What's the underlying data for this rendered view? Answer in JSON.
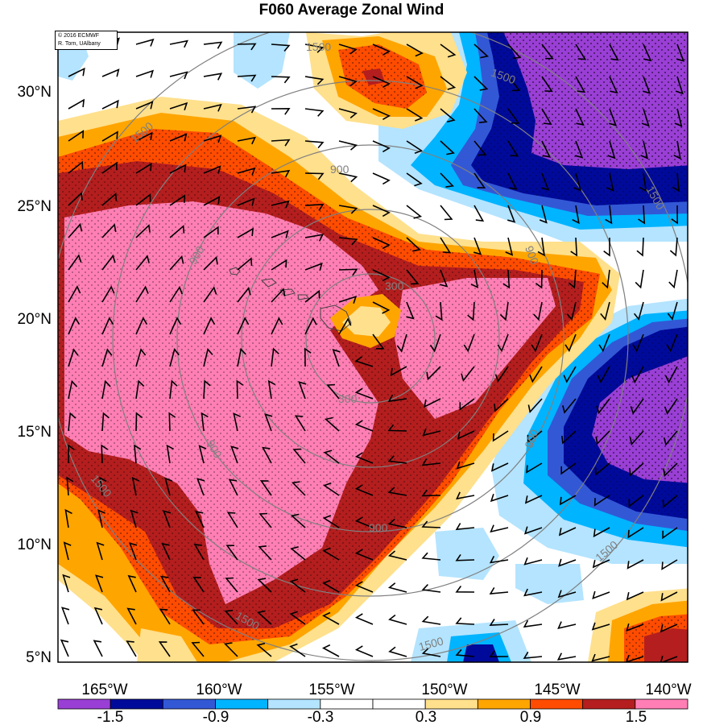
{
  "title": "F060 Average Zonal Wind",
  "credit": {
    "line1": "© 2016 ECMWF",
    "line2": "R. Torn, UAlbany"
  },
  "axes": {
    "lat_labels": [
      "30°N",
      "25°N",
      "20°N",
      "15°N",
      "10°N",
      "5°N"
    ],
    "lon_labels": [
      "165°W",
      "160°W",
      "155°W",
      "150°W",
      "145°W",
      "140°W"
    ]
  },
  "colorbar": {
    "labels": [
      "-1.5",
      "-0.9",
      "-0.3",
      "0.3",
      "0.9",
      "1.5"
    ],
    "colors": [
      "#9a3fd6",
      "#000a9a",
      "#3358d6",
      "#00b4ff",
      "#b4e4ff",
      "#ffffff",
      "#ffffff",
      "#ffe08c",
      "#ffa500",
      "#ff4c00",
      "#b41e1e",
      "#ff7fb4"
    ]
  },
  "contours": {
    "labels": [
      "1500",
      "1500",
      "900",
      "1500",
      "900",
      "900",
      "300",
      "300",
      "900",
      "900",
      "900",
      "1500",
      "1500",
      "1500",
      "1500",
      "1500"
    ]
  },
  "palette": {
    "purple": "#9a3fd6",
    "navy": "#000a9a",
    "blue": "#3358d6",
    "cyan": "#00b4ff",
    "lightblue": "#b4e4ff",
    "lightyellow": "#ffe08c",
    "orange": "#ffa500",
    "redorange": "#ff4c00",
    "darkred": "#b41e1e",
    "pink": "#ff7fb4",
    "contour": "#808080"
  }
}
